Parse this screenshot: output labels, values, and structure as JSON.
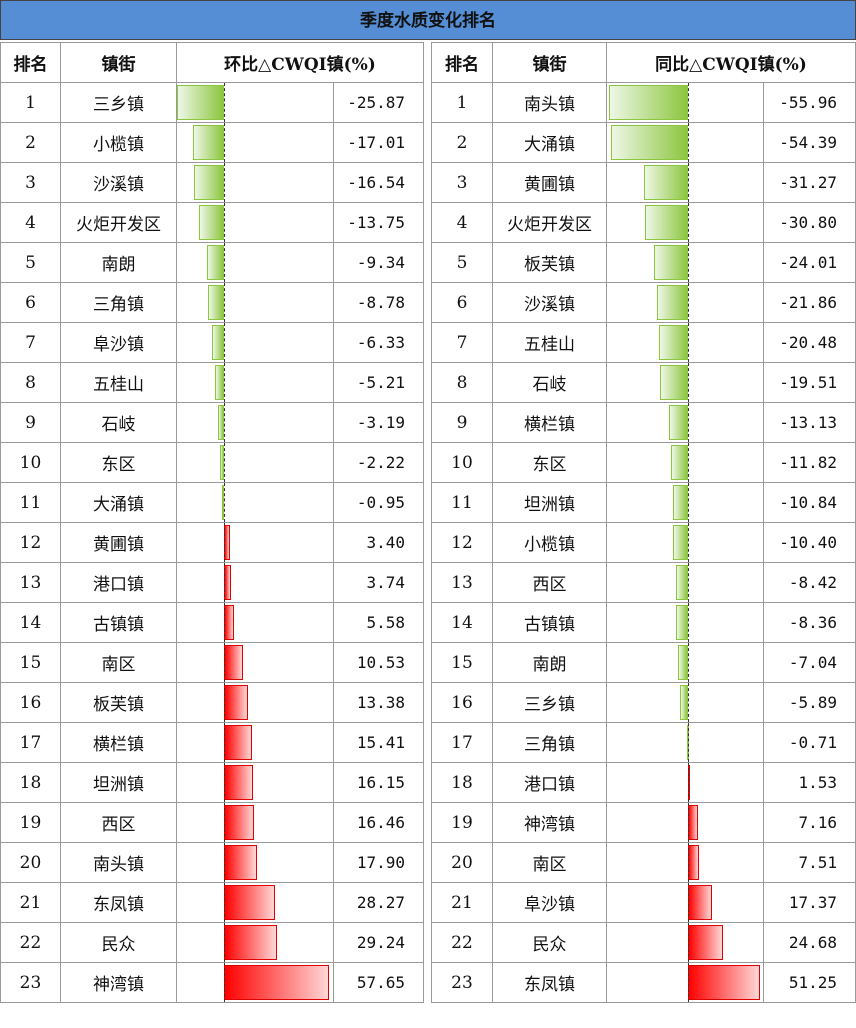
{
  "title": "季度水质变化排名",
  "headers": {
    "rank": "排名",
    "town": "镇街",
    "left_metric": "环比△CWQI镇(%)",
    "right_metric": "同比△CWQI镇(%)"
  },
  "colors": {
    "negative": "#8cc63f",
    "positive": "#ff0000",
    "title_bg": "#558ed5"
  },
  "left": [
    {
      "rank": "1",
      "town": "三乡镇",
      "value": -25.87
    },
    {
      "rank": "2",
      "town": "小榄镇",
      "value": -17.01
    },
    {
      "rank": "3",
      "town": "沙溪镇",
      "value": -16.54
    },
    {
      "rank": "4",
      "town": "火炬开发区",
      "value": -13.75
    },
    {
      "rank": "5",
      "town": "南朗",
      "value": -9.34
    },
    {
      "rank": "6",
      "town": "三角镇",
      "value": -8.78
    },
    {
      "rank": "7",
      "town": "阜沙镇",
      "value": -6.33
    },
    {
      "rank": "8",
      "town": "五桂山",
      "value": -5.21
    },
    {
      "rank": "9",
      "town": "石岐",
      "value": -3.19
    },
    {
      "rank": "10",
      "town": "东区",
      "value": -2.22
    },
    {
      "rank": "11",
      "town": "大涌镇",
      "value": -0.95
    },
    {
      "rank": "12",
      "town": "黄圃镇",
      "value": 3.4
    },
    {
      "rank": "13",
      "town": "港口镇",
      "value": 3.74
    },
    {
      "rank": "14",
      "town": "古镇镇",
      "value": 5.58
    },
    {
      "rank": "15",
      "town": "南区",
      "value": 10.53
    },
    {
      "rank": "16",
      "town": "板芙镇",
      "value": 13.38
    },
    {
      "rank": "17",
      "town": "横栏镇",
      "value": 15.41
    },
    {
      "rank": "18",
      "town": "坦洲镇",
      "value": 16.15
    },
    {
      "rank": "19",
      "town": "西区",
      "value": 16.46
    },
    {
      "rank": "20",
      "town": "南头镇",
      "value": 17.9
    },
    {
      "rank": "21",
      "town": "东凤镇",
      "value": 28.27
    },
    {
      "rank": "22",
      "town": "民众",
      "value": 29.24
    },
    {
      "rank": "23",
      "town": "神湾镇",
      "value": 57.65
    }
  ],
  "right": [
    {
      "rank": "1",
      "town": "南头镇",
      "value": -55.96
    },
    {
      "rank": "2",
      "town": "大涌镇",
      "value": -54.39
    },
    {
      "rank": "3",
      "town": "黄圃镇",
      "value": -31.27
    },
    {
      "rank": "4",
      "town": "火炬开发区",
      "value": -30.8
    },
    {
      "rank": "5",
      "town": "板芙镇",
      "value": -24.01
    },
    {
      "rank": "6",
      "town": "沙溪镇",
      "value": -21.86
    },
    {
      "rank": "7",
      "town": "五桂山",
      "value": -20.48
    },
    {
      "rank": "8",
      "town": "石岐",
      "value": -19.51
    },
    {
      "rank": "9",
      "town": "横栏镇",
      "value": -13.13
    },
    {
      "rank": "10",
      "town": "东区",
      "value": -11.82
    },
    {
      "rank": "11",
      "town": "坦洲镇",
      "value": -10.84
    },
    {
      "rank": "12",
      "town": "小榄镇",
      "value": -10.4
    },
    {
      "rank": "13",
      "town": "西区",
      "value": -8.42
    },
    {
      "rank": "14",
      "town": "古镇镇",
      "value": -8.36
    },
    {
      "rank": "15",
      "town": "南朗",
      "value": -7.04
    },
    {
      "rank": "16",
      "town": "三乡镇",
      "value": -5.89
    },
    {
      "rank": "17",
      "town": "三角镇",
      "value": -0.71
    },
    {
      "rank": "18",
      "town": "港口镇",
      "value": 1.53
    },
    {
      "rank": "19",
      "town": "神湾镇",
      "value": 7.16
    },
    {
      "rank": "20",
      "town": "南区",
      "value": 7.51
    },
    {
      "rank": "21",
      "town": "阜沙镇",
      "value": 17.37
    },
    {
      "rank": "22",
      "town": "民众",
      "value": 24.68
    },
    {
      "rank": "23",
      "town": "东凤镇",
      "value": 51.25
    }
  ]
}
